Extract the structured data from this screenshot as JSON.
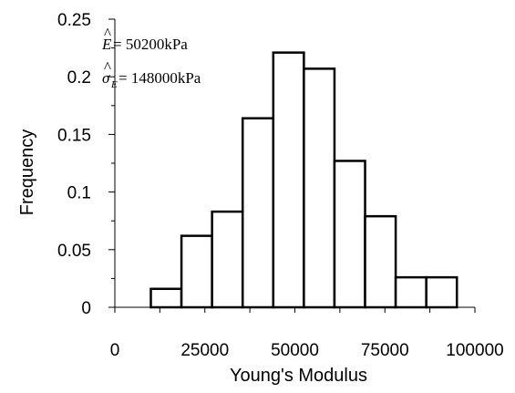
{
  "chart_data": {
    "type": "bar",
    "subtype": "histogram",
    "xlabel": "Young's Modulus",
    "ylabel": "Frequency",
    "xlim": [
      0,
      100000
    ],
    "ylim": [
      0,
      0.25
    ],
    "x_ticks": [
      0,
      25000,
      50000,
      75000,
      100000
    ],
    "x_tick_labels": [
      "0",
      "25000",
      "50000",
      "75000",
      "100000"
    ],
    "y_ticks": [
      0,
      0.05,
      0.1,
      0.15,
      0.2,
      0.25
    ],
    "y_tick_labels": [
      "0",
      "0.05",
      "0.1",
      "0.15",
      "0.2",
      "0.25"
    ],
    "bins": [
      {
        "start": 10000,
        "end": 18500,
        "value": 0.016
      },
      {
        "start": 18500,
        "end": 27000,
        "value": 0.062
      },
      {
        "start": 27000,
        "end": 35500,
        "value": 0.083
      },
      {
        "start": 35500,
        "end": 44000,
        "value": 0.164
      },
      {
        "start": 44000,
        "end": 52500,
        "value": 0.221
      },
      {
        "start": 52500,
        "end": 61000,
        "value": 0.207
      },
      {
        "start": 61000,
        "end": 69500,
        "value": 0.127
      },
      {
        "start": 69500,
        "end": 78000,
        "value": 0.079
      },
      {
        "start": 78000,
        "end": 86500,
        "value": 0.026
      },
      {
        "start": 86500,
        "end": 95000,
        "value": 0.026
      }
    ],
    "annotations": [
      {
        "symbol": "E",
        "subscript": "",
        "hat": true,
        "text": " = 50200kPa"
      },
      {
        "symbol": "σ",
        "subscript": "E",
        "hat": true,
        "text": " = 148000kPa"
      }
    ],
    "grid": false,
    "legend": "none"
  }
}
